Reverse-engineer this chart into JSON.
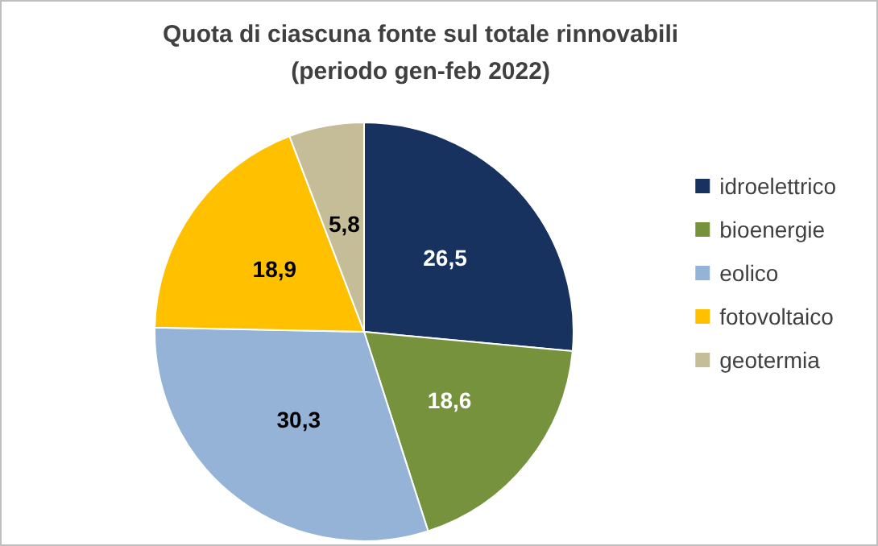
{
  "chart_data": {
    "type": "pie",
    "title": "Quota di ciascuna fonte sul totale rinnovabili",
    "subtitle": "(periodo gen-feb 2022)",
    "categories": [
      "idroelettrico",
      "bioenergie",
      "eolico",
      "fotovoltaico",
      "geotermia"
    ],
    "values": [
      26.5,
      18.6,
      30.3,
      18.9,
      5.8
    ],
    "colors": [
      "#17325f",
      "#76923c",
      "#95b3d7",
      "#ffc000",
      "#c4bd97"
    ],
    "value_labels": [
      "26,5",
      "18,6",
      "30,3",
      "18,9",
      "5,8"
    ],
    "legend": "right"
  }
}
